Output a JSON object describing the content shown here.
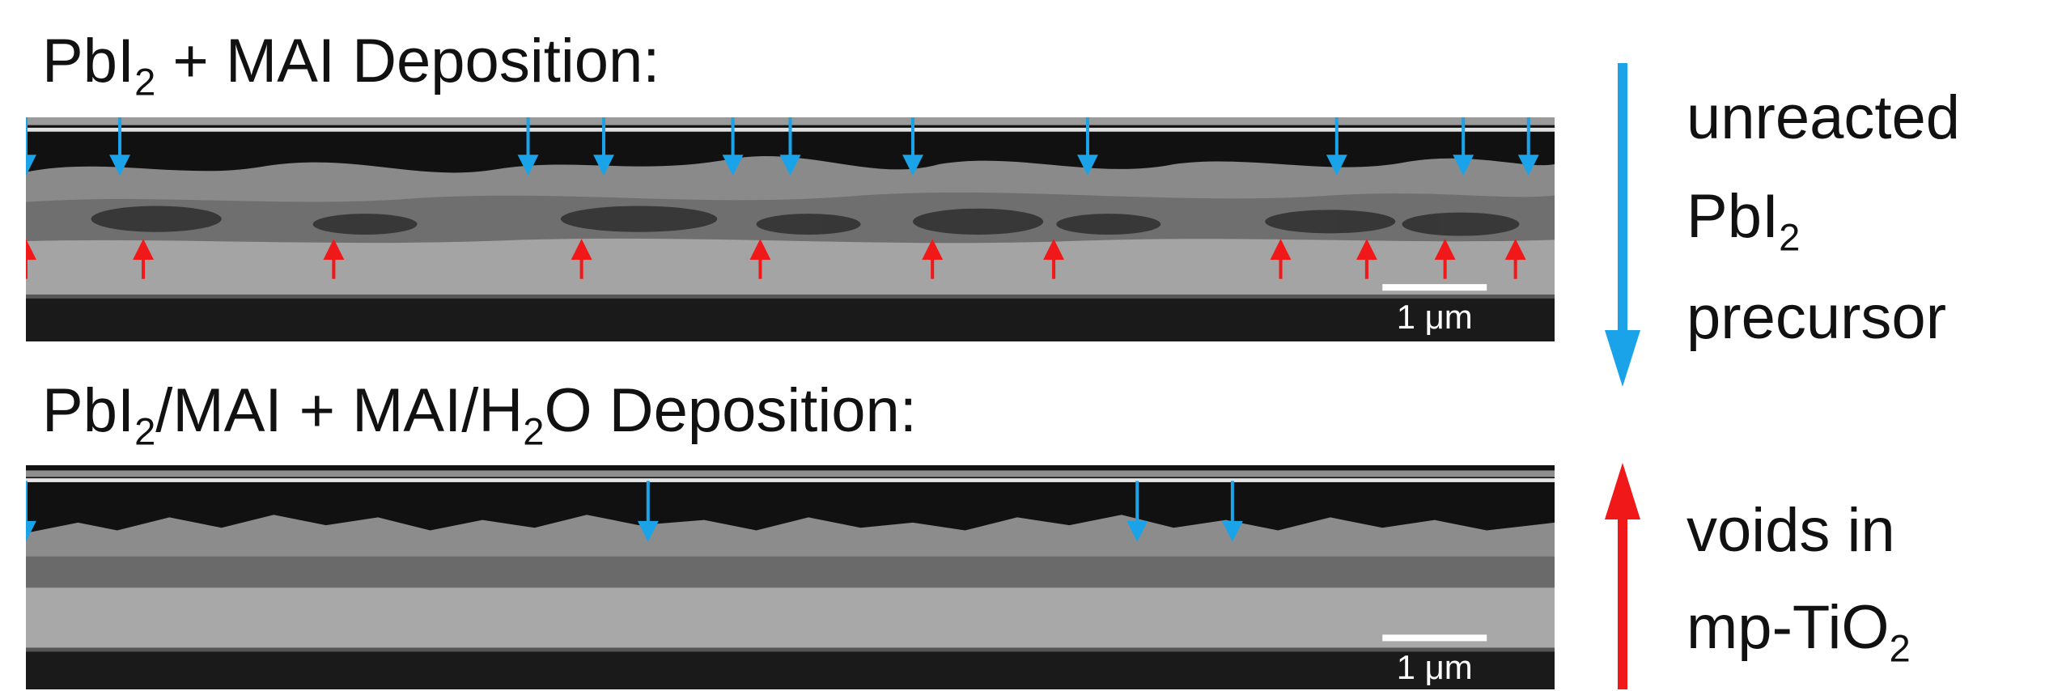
{
  "panels": [
    {
      "heading": [
        "PbI",
        "2",
        " + MAI Deposition:"
      ],
      "scale_bar": "1 μm"
    },
    {
      "heading": [
        "PbI",
        "2",
        "/MAI + MAI/H",
        "2",
        "O Deposition:"
      ],
      "scale_bar": "1 μm"
    }
  ],
  "legend": [
    {
      "lines": [
        "unreacted",
        "PbI",
        "2",
        "precursor"
      ]
    },
    {
      "lines": [
        "voids in",
        "mp-TiO",
        "2"
      ]
    }
  ]
}
